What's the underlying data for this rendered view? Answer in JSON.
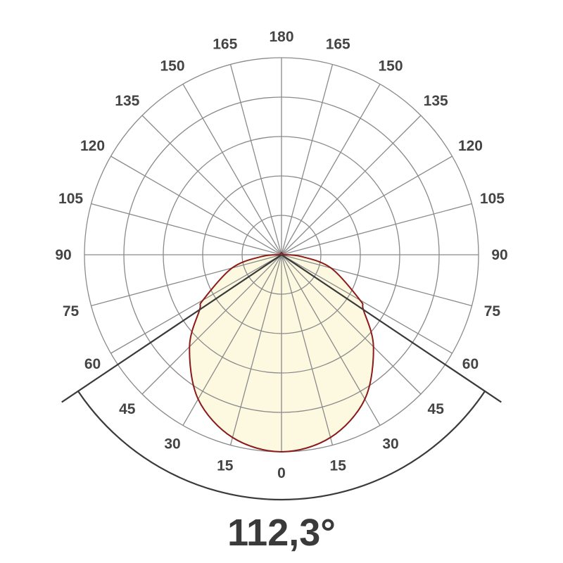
{
  "chart_data": {
    "type": "polar",
    "angle_labels": [
      "0",
      "15",
      "30",
      "45",
      "60",
      "75",
      "90",
      "105",
      "120",
      "135",
      "150",
      "165",
      "180"
    ],
    "radial_ring_count": 5,
    "grid": true,
    "series": [
      {
        "angles": [
          0,
          15,
          30,
          45,
          56.15,
          60,
          75,
          85,
          90
        ],
        "values": [
          5.0,
          4.8,
          4.23,
          3.3,
          2.5,
          2.3,
          1.3,
          0.5,
          0.05
        ],
        "symmetric": true
      }
    ],
    "beam_angle": 112.3,
    "beam_angle_label": "112,3°",
    "colors": {
      "grid": "#8a8a8a",
      "curve": "#8b1a1a",
      "fill": "#fdf9e1",
      "beam_lines": "#3a3a3a"
    }
  }
}
